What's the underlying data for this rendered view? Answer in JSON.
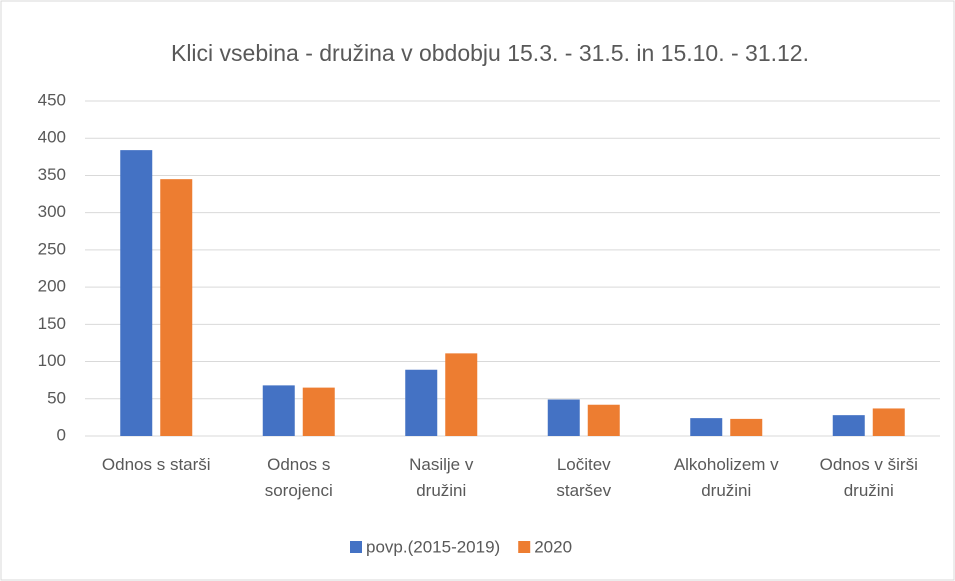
{
  "chart_data": {
    "type": "bar",
    "title": "Klici vsebina - družina v obdobju 15.3. - 31.5. in 15.10. - 31.12.",
    "categories": [
      "Odnos s starši",
      "Odnos s\nsorojenci",
      "Nasilje v\ndružini",
      "Ločitev\nstaršev",
      "Alkoholizem v\ndružini",
      "Odnos v širši\ndružini"
    ],
    "series": [
      {
        "name": "povp.(2015-2019)",
        "color": "#4472c4",
        "values": [
          384,
          68,
          89,
          49,
          24,
          28
        ]
      },
      {
        "name": "2020",
        "color": "#ed7d31",
        "values": [
          345,
          65,
          111,
          42,
          23,
          37
        ]
      }
    ],
    "ylim": [
      0,
      450
    ],
    "yticks": [
      0,
      50,
      100,
      150,
      200,
      250,
      300,
      350,
      400,
      450
    ],
    "grid": true,
    "legend": "bottom"
  }
}
